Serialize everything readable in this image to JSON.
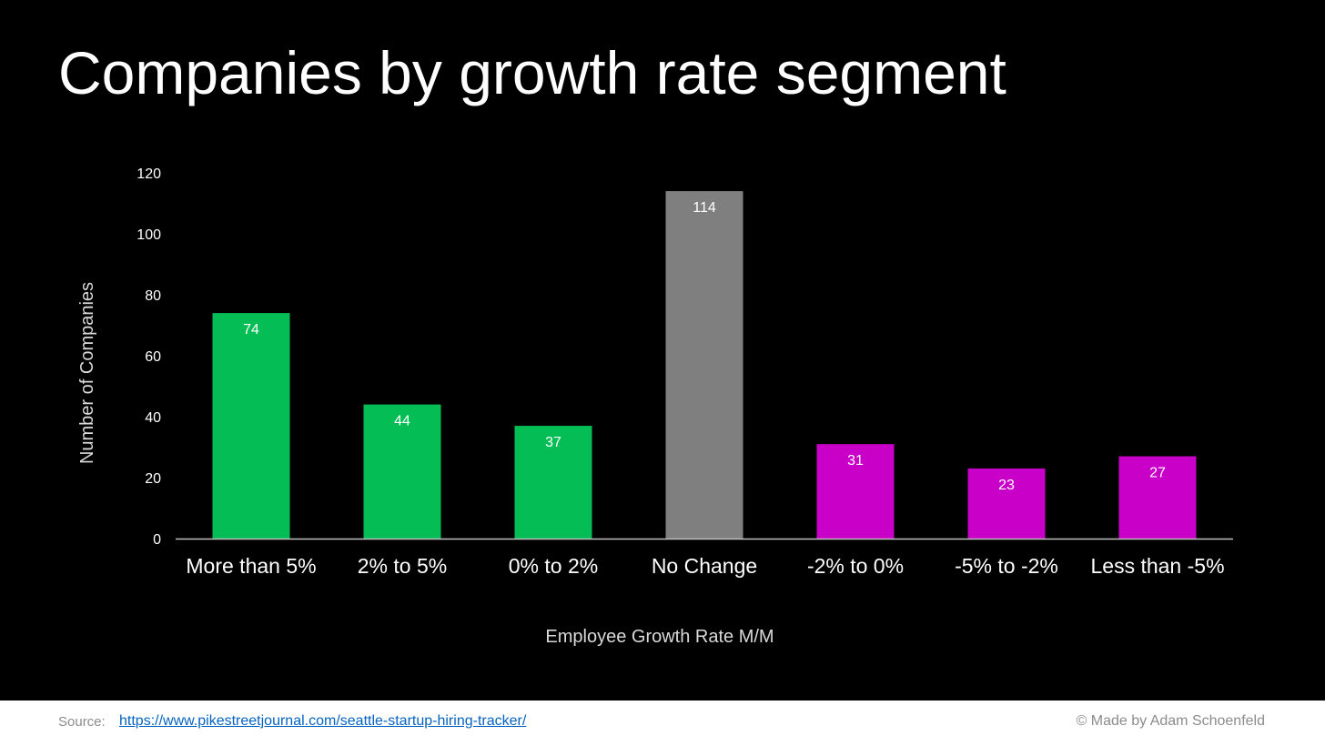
{
  "title": "Companies by growth rate segment",
  "chart_data": {
    "type": "bar",
    "categories": [
      "More than 5%",
      "2% to 5%",
      "0% to 2%",
      "No Change",
      "-2% to 0%",
      "-5% to -2%",
      "Less than -5%"
    ],
    "values": [
      74,
      44,
      37,
      114,
      31,
      23,
      27
    ],
    "data_labels": [
      "74",
      "44",
      "37",
      "114",
      "31",
      "23",
      "27"
    ],
    "bar_colors": [
      "#05bd55",
      "#05bd55",
      "#05bd55",
      "#7f7f7f",
      "#c800c8",
      "#c800c8",
      "#c800c8"
    ],
    "xlabel": "Employee Growth Rate M/M",
    "ylabel": "Number of Companies",
    "ylim": [
      0,
      120
    ],
    "yticks": [
      "0",
      "20",
      "40",
      "60",
      "80",
      "100",
      "120"
    ],
    "grid": false,
    "legend": "none"
  },
  "footer": {
    "source_label": "Source:",
    "source_url": "https://www.pikestreetjournal.com/seattle-startup-hiring-tracker/",
    "credit": "© Made by Adam Schoenfeld"
  }
}
